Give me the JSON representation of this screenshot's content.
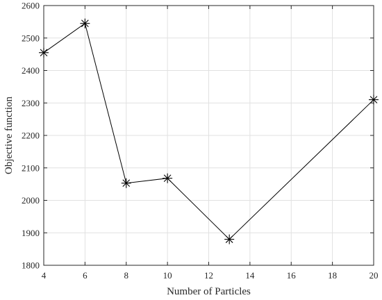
{
  "chart_data": {
    "type": "line",
    "title": "",
    "xlabel": "Number of Particles",
    "ylabel": "Objective function",
    "xlim": [
      4,
      20
    ],
    "ylim": [
      1800,
      2600
    ],
    "xticks": [
      4,
      6,
      8,
      10,
      12,
      14,
      16,
      18,
      20
    ],
    "yticks": [
      1800,
      1900,
      2000,
      2100,
      2200,
      2300,
      2400,
      2500,
      2600
    ],
    "grid": true,
    "legend": "none",
    "series": [
      {
        "marker": "asterisk",
        "color": "#000000",
        "x": [
          4,
          6,
          8,
          10,
          13,
          20
        ],
        "y": [
          2455,
          2545,
          2053,
          2068,
          1880,
          2310
        ]
      }
    ]
  }
}
